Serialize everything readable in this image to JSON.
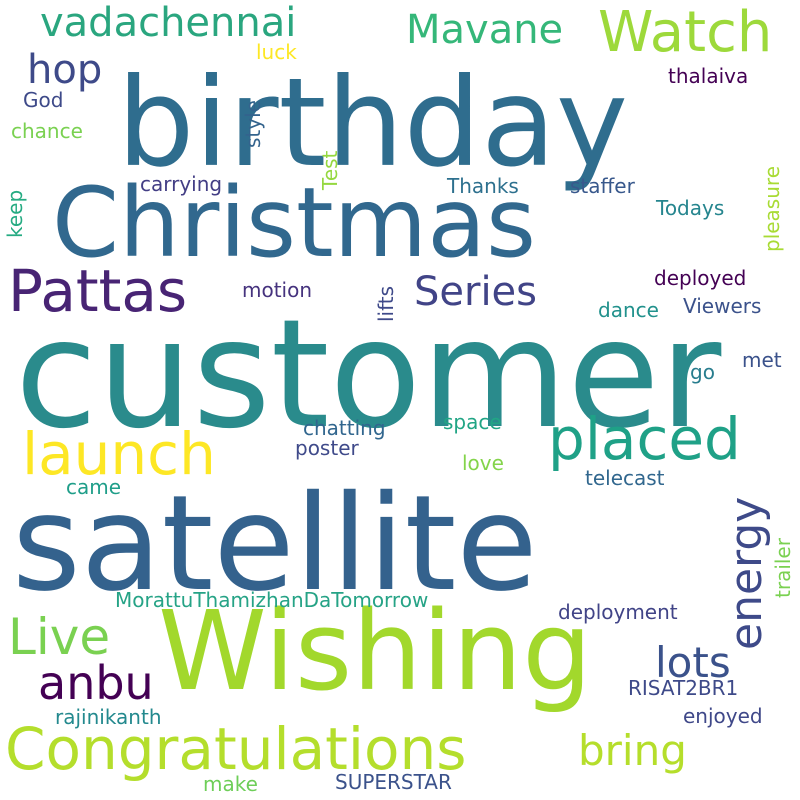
{
  "words": [
    {
      "text": "customer",
      "color": "#2a8b8c"
    },
    {
      "text": "satellite",
      "color": "#34628d"
    },
    {
      "text": "birthday",
      "color": "#2f6d8e"
    },
    {
      "text": "Wishing",
      "color": "#a2d82c"
    },
    {
      "text": "Christmas",
      "color": "#31688e"
    },
    {
      "text": "Congratulations",
      "color": "#b4de2c"
    },
    {
      "text": "Pattas",
      "color": "#482474"
    },
    {
      "text": "placed",
      "color": "#1fa187"
    },
    {
      "text": "launch",
      "color": "#fde725"
    },
    {
      "text": "Watch",
      "color": "#9dd93b"
    },
    {
      "text": "vadachennai",
      "color": "#2aa67f"
    },
    {
      "text": "Mavane",
      "color": "#35b779"
    },
    {
      "text": "energy",
      "color": "#3e4a89"
    },
    {
      "text": "Live",
      "color": "#7ad151"
    },
    {
      "text": "anbu",
      "color": "#440154"
    },
    {
      "text": "lots",
      "color": "#3b528b"
    },
    {
      "text": "bring",
      "color": "#b5de2b"
    },
    {
      "text": "Series",
      "color": "#414487"
    },
    {
      "text": "hop",
      "color": "#3e4a89"
    },
    {
      "text": "MorattuThamizhanDaTomorrow",
      "color": "#26a386"
    },
    {
      "text": "RISAT2BR1",
      "color": "#3e4a89"
    },
    {
      "text": "rajinikanth",
      "color": "#23898e"
    },
    {
      "text": "enjoyed",
      "color": "#3f4889"
    },
    {
      "text": "SUPERSTAR",
      "color": "#3b528b"
    },
    {
      "text": "make",
      "color": "#6ece58"
    },
    {
      "text": "deployment",
      "color": "#414487"
    },
    {
      "text": "telecast",
      "color": "#31678e"
    },
    {
      "text": "Thanks",
      "color": "#2d708e"
    },
    {
      "text": "staffer",
      "color": "#38588c"
    },
    {
      "text": "Todays",
      "color": "#25858e"
    },
    {
      "text": "deployed",
      "color": "#440154"
    },
    {
      "text": "Viewers",
      "color": "#3b528b"
    },
    {
      "text": "dance",
      "color": "#21918c"
    },
    {
      "text": "motion",
      "color": "#46337e"
    },
    {
      "text": "carrying",
      "color": "#433e85"
    },
    {
      "text": "chatting",
      "color": "#31668e"
    },
    {
      "text": "poster",
      "color": "#3f4a8a"
    },
    {
      "text": "space",
      "color": "#21a585"
    },
    {
      "text": "love",
      "color": "#84d44b"
    },
    {
      "text": "came",
      "color": "#1f9e89"
    },
    {
      "text": "go",
      "color": "#287d8e"
    },
    {
      "text": "met",
      "color": "#3b528b"
    },
    {
      "text": "thalaiva",
      "color": "#440154"
    },
    {
      "text": "God",
      "color": "#3e4a89"
    },
    {
      "text": "chance",
      "color": "#7ad151"
    },
    {
      "text": "luck",
      "color": "#fde725"
    },
    {
      "text": "style",
      "color": "#33638d"
    },
    {
      "text": "Test",
      "color": "#95d840"
    },
    {
      "text": "keep",
      "color": "#25ab82"
    },
    {
      "text": "lifts",
      "color": "#3e4989"
    },
    {
      "text": "pleasure",
      "color": "#a8db34"
    },
    {
      "text": "trailer",
      "color": "#7ad151"
    }
  ]
}
